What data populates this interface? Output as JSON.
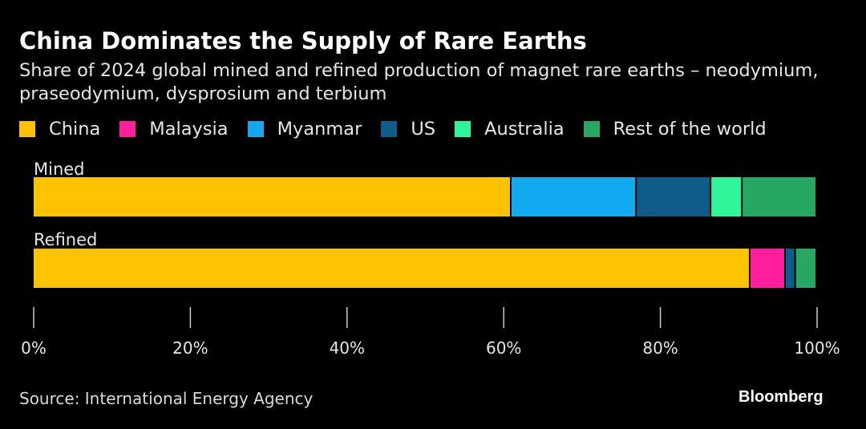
{
  "title": "China Dominates the Supply of Rare Earths",
  "subtitle": "Share of 2024 global mined and refined production of magnet rare earths – neodymium, praseodymium, dysprosium and terbium",
  "source": "Source: International Energy Agency",
  "brand": "Bloomberg",
  "colors": {
    "background": "#000000",
    "China": "#FFC200",
    "Malaysia": "#FF1E9B",
    "Myanmar": "#12A9F0",
    "US": "#0D5C8A",
    "Australia": "#2FF59A",
    "Rest of the world": "#27A862",
    "axis": "#cccccc"
  },
  "chart_data": {
    "type": "bar",
    "orientation": "horizontal",
    "stacked": true,
    "categories": [
      "Mined",
      "Refined"
    ],
    "series": [
      {
        "name": "China",
        "values": [
          61,
          91.5
        ]
      },
      {
        "name": "Malaysia",
        "values": [
          0,
          4.5
        ]
      },
      {
        "name": "Myanmar",
        "values": [
          16,
          0
        ]
      },
      {
        "name": "US",
        "values": [
          9.5,
          1.3
        ]
      },
      {
        "name": "Australia",
        "values": [
          4,
          0
        ]
      },
      {
        "name": "Rest of the world",
        "values": [
          9.5,
          2.7
        ]
      }
    ],
    "xlim": [
      0,
      100
    ],
    "x_ticks": [
      "0%",
      "20%",
      "40%",
      "60%",
      "80%",
      "100%"
    ],
    "x_tick_values": [
      0,
      20,
      40,
      60,
      80,
      100
    ],
    "grid": false,
    "legend_position": "top"
  }
}
